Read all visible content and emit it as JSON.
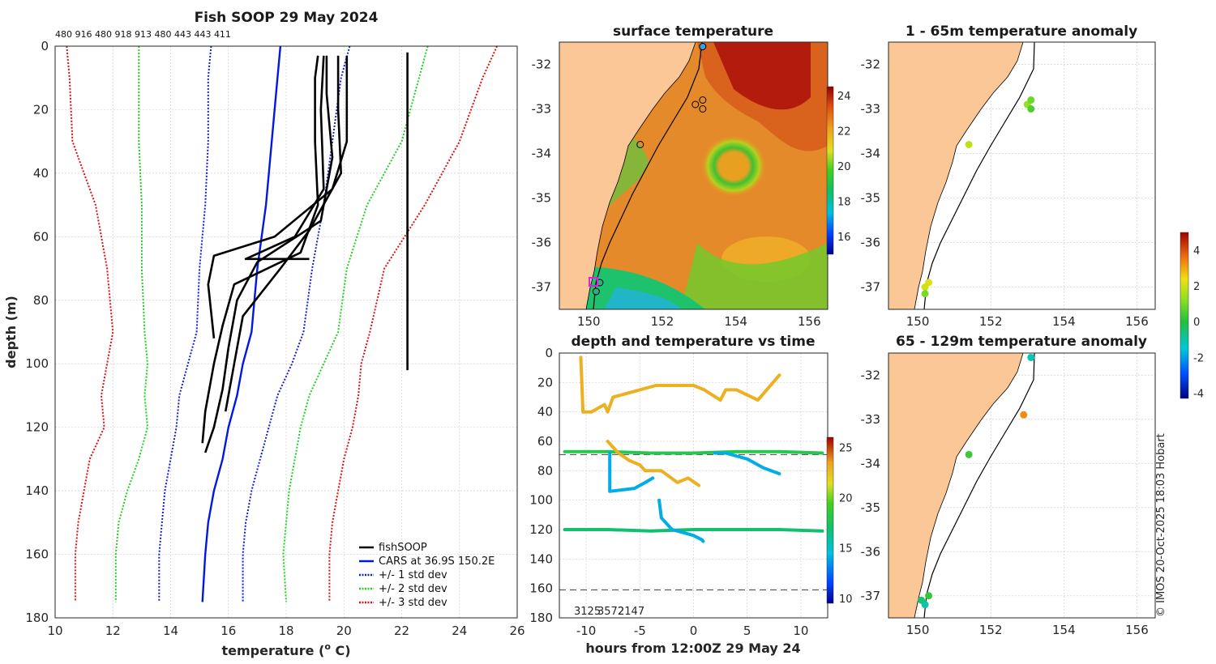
{
  "colors": {
    "land": "#fbc797",
    "cars": "#0018e0",
    "std1": "#1020d0",
    "std2": "#22d022",
    "std3": "#e01010",
    "fishsoop": "#000000"
  },
  "chart_data": [
    {
      "type": "line",
      "title": "Fish SOOP 29 May 2024",
      "top_labels": "480 916 480 918 913 480 443 443 411",
      "xlabel": "temperature (",
      "xlabel_sup": "o",
      "xlabel_tail": " C)",
      "ylabel": "depth (m)",
      "xlim": [
        10,
        26
      ],
      "ylim": [
        180,
        0
      ],
      "xticks": [
        10,
        12,
        14,
        16,
        18,
        20,
        22,
        24,
        26
      ],
      "yticks": [
        0,
        20,
        40,
        60,
        80,
        100,
        120,
        140,
        160,
        180
      ],
      "legend": [
        "fishSOOP",
        "CARS at 36.9S 150.2E",
        "+/- 1 std dev",
        "+/- 2 std dev",
        "+/- 3 std dev"
      ],
      "legend_position": "bottom-right",
      "series": [
        {
          "name": "CARS at 36.9S 150.2E",
          "temp": [
            17.8,
            17.7,
            17.5,
            17.3,
            17.0,
            16.8,
            16.5,
            16.3,
            16.0,
            15.8,
            15.5,
            15.3,
            15.2,
            15.1
          ],
          "depth": [
            0,
            10,
            30,
            50,
            70,
            90,
            100,
            110,
            120,
            130,
            140,
            150,
            160,
            175
          ]
        },
        {
          "name": "-1 std",
          "temp": [
            15.4,
            15.3,
            15.3,
            15.2,
            15.0,
            14.9,
            14.6,
            14.3,
            14.2,
            14.0,
            13.8,
            13.7,
            13.6,
            13.6
          ],
          "depth": [
            0,
            10,
            30,
            50,
            70,
            90,
            100,
            110,
            120,
            130,
            140,
            150,
            160,
            175
          ]
        },
        {
          "name": "+1 std",
          "temp": [
            20.2,
            19.9,
            19.6,
            19.3,
            18.9,
            18.6,
            18.2,
            17.7,
            17.4,
            17.1,
            16.8,
            16.6,
            16.5,
            16.5
          ],
          "depth": [
            0,
            10,
            30,
            50,
            70,
            90,
            100,
            110,
            120,
            130,
            140,
            150,
            160,
            175
          ]
        },
        {
          "name": "-2 std",
          "temp": [
            12.9,
            12.9,
            12.9,
            13.0,
            13.0,
            13.1,
            13.2,
            13.1,
            13.2,
            12.9,
            12.5,
            12.2,
            12.1,
            12.1
          ],
          "depth": [
            0,
            10,
            30,
            50,
            70,
            90,
            100,
            110,
            120,
            130,
            140,
            150,
            160,
            175
          ]
        },
        {
          "name": "+2 std",
          "temp": [
            22.9,
            22.6,
            22.0,
            20.8,
            20.1,
            19.8,
            19.3,
            18.8,
            18.5,
            18.3,
            18.1,
            18.0,
            17.9,
            18.0
          ],
          "depth": [
            0,
            10,
            30,
            50,
            70,
            90,
            100,
            110,
            120,
            130,
            140,
            150,
            160,
            175
          ]
        },
        {
          "name": "-3 std",
          "temp": [
            10.4,
            10.5,
            10.6,
            11.4,
            11.8,
            12.0,
            11.8,
            11.6,
            11.7,
            11.2,
            11.0,
            10.8,
            10.7,
            10.7
          ],
          "depth": [
            0,
            10,
            30,
            50,
            70,
            90,
            100,
            110,
            120,
            130,
            140,
            150,
            160,
            175
          ]
        },
        {
          "name": "+3 std",
          "temp": [
            25.3,
            24.8,
            24.0,
            22.8,
            21.4,
            20.9,
            20.6,
            20.5,
            20.3,
            20.0,
            19.8,
            19.6,
            19.5,
            19.5
          ],
          "depth": [
            0,
            10,
            30,
            50,
            70,
            90,
            100,
            110,
            120,
            130,
            140,
            150,
            160,
            175
          ]
        },
        {
          "name": "fishSOOP cast 1",
          "temp": [
            19.1,
            19.0,
            19.0,
            19.1,
            18.5,
            16.2,
            15.8,
            15.5,
            15.2,
            15.1
          ],
          "depth": [
            3,
            10,
            30,
            50,
            65,
            75,
            88,
            100,
            115,
            125
          ]
        },
        {
          "name": "fishSOOP cast 2",
          "temp": [
            19.4,
            19.4,
            19.6,
            19.2,
            17.0,
            16.3,
            16.0,
            15.8,
            15.5,
            15.2
          ],
          "depth": [
            3,
            15,
            35,
            55,
            68,
            80,
            95,
            108,
            120,
            128
          ]
        },
        {
          "name": "fishSOOP cast 3",
          "temp": [
            19.8,
            19.8,
            19.9,
            18.8,
            17.8,
            16.5,
            16.2,
            15.9
          ],
          "depth": [
            3,
            20,
            40,
            58,
            70,
            85,
            100,
            115
          ]
        },
        {
          "name": "fishSOOP cast 4",
          "temp": [
            20.1,
            20.1,
            19.6,
            17.6,
            15.5,
            15.3,
            15.5
          ],
          "depth": [
            3,
            30,
            45,
            60,
            66,
            75,
            92
          ]
        },
        {
          "name": "fishSOOP cast 5",
          "temp": [
            19.3,
            19.2,
            19.3,
            18.3,
            16.6,
            18.8
          ],
          "depth": [
            3,
            20,
            45,
            60,
            67,
            67
          ]
        },
        {
          "name": "fishSOOP cast 6",
          "temp": [
            22.2,
            22.2,
            22.2,
            22.2,
            22.2
          ],
          "depth": [
            2,
            30,
            60,
            90,
            102
          ]
        }
      ]
    },
    {
      "type": "heatmap",
      "title": "surface temperature",
      "xlim": [
        149.2,
        156.5
      ],
      "ylim": [
        -37.5,
        -31.5
      ],
      "xticks": [
        150,
        152,
        154,
        156
      ],
      "yticks": [
        -32,
        -33,
        -34,
        -35,
        -36,
        -37
      ],
      "colorbar_ticks": [
        16,
        18,
        20,
        22,
        24
      ],
      "clim": [
        15,
        24.5
      ],
      "stations": [
        {
          "lon": 153.1,
          "lat": -31.6
        },
        {
          "lon": 152.9,
          "lat": -32.9
        },
        {
          "lon": 153.1,
          "lat": -32.8
        },
        {
          "lon": 153.1,
          "lat": -33.0
        },
        {
          "lon": 151.4,
          "lat": -33.8
        },
        {
          "lon": 150.3,
          "lat": -36.9
        },
        {
          "lon": 150.2,
          "lat": -37.1
        }
      ]
    },
    {
      "type": "scatter",
      "title": "depth and temperature vs time",
      "xlabel": "hours from 12:00Z 29 May 24",
      "xlim": [
        -12.5,
        12.5
      ],
      "ylim": [
        180,
        0
      ],
      "xticks": [
        -10,
        -5,
        0,
        5,
        10
      ],
      "yticks": [
        0,
        20,
        40,
        60,
        80,
        100,
        120,
        140,
        160,
        180
      ],
      "colorbar_ticks": [
        10,
        15,
        20,
        25
      ],
      "clim": [
        9.5,
        26
      ],
      "bottom_labels": [
        "3125",
        "3572",
        "2147"
      ],
      "series": [
        {
          "name": "trace 1",
          "t": [
            -12,
            -8,
            -4,
            0,
            4,
            8,
            12
          ],
          "depth": [
            67,
            67,
            68,
            68,
            67,
            67,
            68
          ],
          "temp": [
            18,
            18,
            18,
            18,
            18,
            18,
            18
          ]
        },
        {
          "name": "trace 2",
          "t": [
            -12,
            -8,
            -4,
            0,
            4,
            8,
            12
          ],
          "depth": [
            120,
            120,
            121,
            120,
            120,
            120,
            121
          ],
          "temp": [
            17,
            17,
            17,
            17,
            17,
            17,
            17
          ]
        },
        {
          "name": "trace 3",
          "t": [
            -10.5,
            -10.3,
            -9.5,
            -8.3,
            -8.0,
            -7.5,
            -5,
            -3.5,
            -2,
            0,
            1,
            2.5,
            3,
            4,
            6,
            8
          ],
          "depth": [
            3,
            40,
            40,
            35,
            40,
            30,
            25,
            22,
            22,
            22,
            25,
            32,
            25,
            25,
            32,
            15
          ],
          "temp": [
            23,
            23,
            23,
            23,
            23,
            23,
            23,
            23,
            23,
            23,
            23,
            23,
            23,
            23,
            23,
            23
          ]
        },
        {
          "name": "trace 4",
          "t": [
            -8,
            -7,
            -6,
            -5,
            -4.5,
            -3.5,
            -3,
            -1.5,
            -0.5,
            0.5
          ],
          "depth": [
            60,
            68,
            73,
            76,
            80,
            80,
            80,
            88,
            85,
            90
          ],
          "temp": [
            23,
            23,
            23,
            23,
            23,
            23,
            23,
            23,
            23,
            23
          ]
        },
        {
          "name": "trace 5",
          "t": [
            -7.8,
            -7.8,
            -5.5,
            -4.5,
            -3.8
          ],
          "depth": [
            68,
            94,
            92,
            88,
            85
          ],
          "temp": [
            14,
            14,
            14,
            14,
            14
          ]
        },
        {
          "name": "trace 6",
          "t": [
            -3.2,
            -3.0,
            -2.0,
            -1.0,
            0,
            0.8,
            0.9
          ],
          "depth": [
            100,
            112,
            120,
            122,
            124,
            127,
            128
          ],
          "temp": [
            14,
            14,
            14,
            14,
            14,
            14,
            14
          ]
        },
        {
          "name": "trace 7",
          "t": [
            2,
            3,
            5,
            6.5,
            8
          ],
          "depth": [
            68,
            68,
            72,
            78,
            82
          ],
          "temp": [
            14,
            14,
            14,
            14,
            14
          ]
        }
      ],
      "reference_lines_depth": [
        69,
        161
      ]
    },
    {
      "type": "scatter",
      "title": "1 - 65m temperature anomaly",
      "xlim": [
        149.2,
        156.5
      ],
      "ylim": [
        -37.5,
        -31.5
      ],
      "xticks": [
        150,
        152,
        154,
        156
      ],
      "yticks": [
        -32,
        -33,
        -34,
        -35,
        -36,
        -37
      ],
      "points": [
        {
          "lon": 153.0,
          "lat": -32.9,
          "anom": 1.3
        },
        {
          "lon": 153.1,
          "lat": -32.8,
          "anom": 0.9
        },
        {
          "lon": 153.1,
          "lat": -33.0,
          "anom": 0.5
        },
        {
          "lon": 151.4,
          "lat": -33.8,
          "anom": 1.8
        },
        {
          "lon": 150.3,
          "lat": -36.9,
          "anom": 2.2
        },
        {
          "lon": 150.2,
          "lat": -37.0,
          "anom": 2.0
        },
        {
          "lon": 150.2,
          "lat": -37.15,
          "anom": 1.0
        }
      ]
    },
    {
      "type": "scatter",
      "title": "65 - 129m temperature anomaly",
      "xlim": [
        149.2,
        156.5
      ],
      "ylim": [
        -37.5,
        -31.5
      ],
      "xticks": [
        150,
        152,
        154,
        156
      ],
      "yticks": [
        -32,
        -33,
        -34,
        -35,
        -36,
        -37
      ],
      "points": [
        {
          "lon": 153.1,
          "lat": -31.6,
          "anom": -1.2
        },
        {
          "lon": 152.9,
          "lat": -32.9,
          "anom": 3.3
        },
        {
          "lon": 151.4,
          "lat": -33.8,
          "anom": 0.3
        },
        {
          "lon": 150.3,
          "lat": -37.0,
          "anom": 0.2
        },
        {
          "lon": 150.1,
          "lat": -37.1,
          "anom": -0.5
        },
        {
          "lon": 150.2,
          "lat": -37.2,
          "anom": -1.0
        }
      ],
      "colorbar_ticks": [
        -4,
        -2,
        0,
        2,
        4
      ],
      "clim": [
        -4.3,
        5
      ]
    }
  ],
  "copyright": "© IMOS 20-Oct-2025 18:03 Hobart"
}
